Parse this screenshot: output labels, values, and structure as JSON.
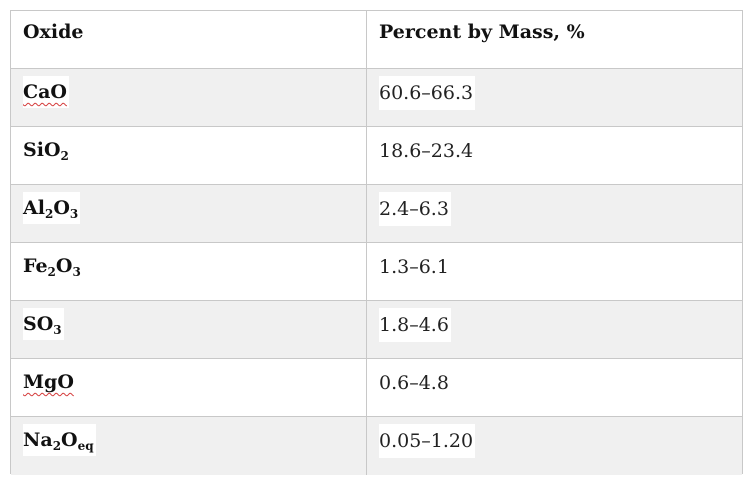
{
  "table": {
    "header": {
      "oxide": "Oxide",
      "percent": "Percent by Mass, %"
    },
    "rows": [
      {
        "oxide_base": "CaO",
        "oxide_parts": [
          [
            "CaO",
            ""
          ]
        ],
        "value": "60.6–66.3",
        "spellcheck": true
      },
      {
        "oxide_base": "SiO",
        "oxide_parts": [
          [
            "SiO",
            "2"
          ]
        ],
        "value": "18.6–23.4",
        "spellcheck": false
      },
      {
        "oxide_base": "Al2O3",
        "oxide_parts": [
          [
            "Al",
            "2"
          ],
          [
            "O",
            "3"
          ]
        ],
        "value": "2.4–6.3",
        "spellcheck": false
      },
      {
        "oxide_base": "Fe2O3",
        "oxide_parts": [
          [
            "Fe",
            "2"
          ],
          [
            "O",
            "3"
          ]
        ],
        "value": "1.3–6.1",
        "spellcheck": false
      },
      {
        "oxide_base": "SO3",
        "oxide_parts": [
          [
            "SO",
            "3"
          ]
        ],
        "value": "1.8–4.6",
        "spellcheck": false
      },
      {
        "oxide_base": "MgO",
        "oxide_parts": [
          [
            "MgO",
            ""
          ]
        ],
        "value": "0.6–4.8",
        "spellcheck": true
      },
      {
        "oxide_base": "Na2Oeq",
        "oxide_parts": [
          [
            "Na",
            "2"
          ],
          [
            "O",
            "eq"
          ]
        ],
        "value": "0.05–1.20",
        "spellcheck": false
      }
    ]
  },
  "colors": {
    "shaded_row": "#f0f0f0",
    "border": "#c8c8c8",
    "spellcheck_underline": "#d43a3a"
  }
}
